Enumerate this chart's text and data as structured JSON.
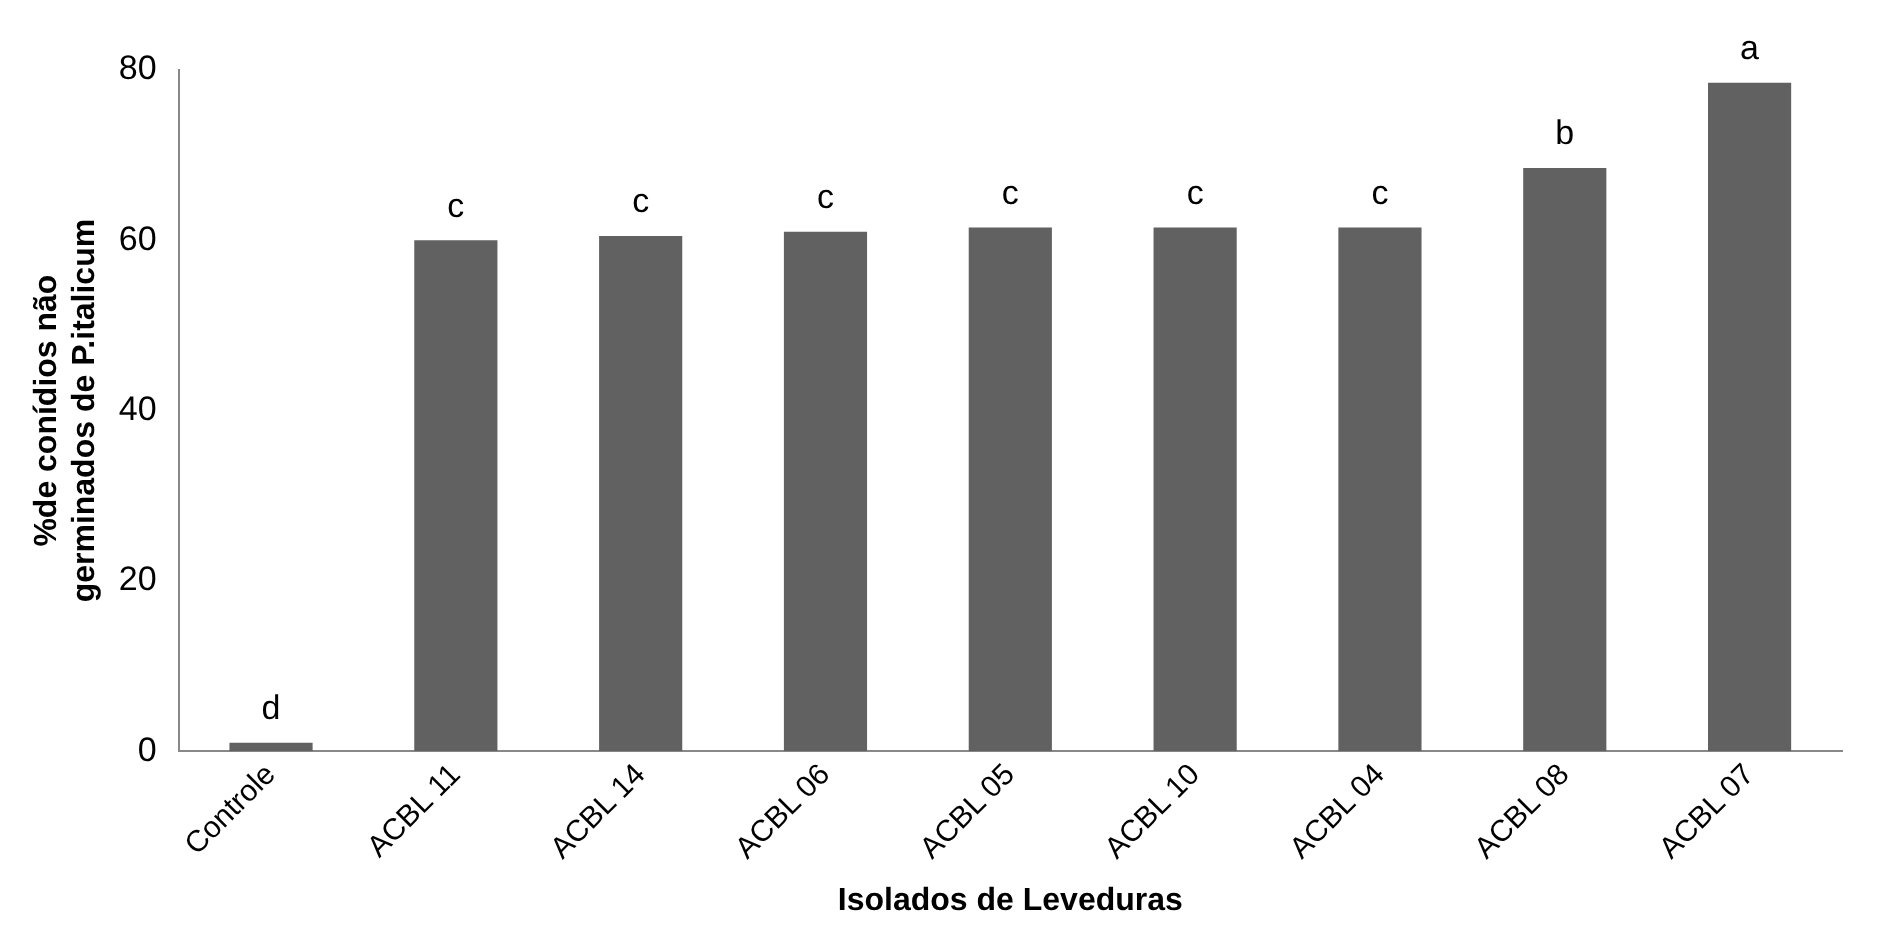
{
  "chart_data": {
    "type": "bar",
    "xlabel": "Isolados de Leveduras",
    "ylabel": "%de conídios não germinados de P.italicum",
    "categories": [
      "Controle",
      "ACBL 11",
      "ACBL 14",
      "ACBL 06",
      "ACBL 05",
      "ACBL 10",
      "ACBL 04",
      "ACBL 08",
      "ACBL 07"
    ],
    "values": [
      1,
      60,
      60.5,
      61,
      61.5,
      61.5,
      61.5,
      68.5,
      78.5
    ],
    "color": "#616161",
    "ylim": [
      0,
      80
    ],
    "yticks": [
      0,
      20,
      40,
      60,
      80
    ],
    "grid": false,
    "annotations": [
      {
        "text": "d",
        "x": "Controle",
        "y": 1
      },
      {
        "text": "c",
        "x": "ACBL 11",
        "y": 60
      },
      {
        "text": "c",
        "x": "ACBL 14",
        "y": 60.5
      },
      {
        "text": "c",
        "x": "ACBL 06",
        "y": 61
      },
      {
        "text": "c",
        "x": "ACBL 05",
        "y": 61.5
      },
      {
        "text": "c",
        "x": "ACBL 10",
        "y": 61.5
      },
      {
        "text": "c",
        "x": "ACBL 04",
        "y": 61.5
      },
      {
        "text": "b",
        "x": "ACBL 08",
        "y": 68.5
      },
      {
        "text": "a",
        "x": "ACBL 07",
        "y": 78.5
      }
    ]
  }
}
